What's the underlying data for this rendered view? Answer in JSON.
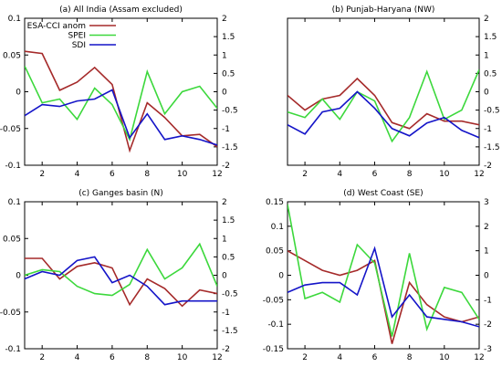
{
  "chart_data": [
    {
      "type": "line",
      "title": "(a) All India (Assam excluded)",
      "x": [
        1,
        2,
        3,
        4,
        5,
        6,
        7,
        8,
        9,
        10,
        11,
        12
      ],
      "x_ticks": [
        2,
        4,
        6,
        8,
        10,
        12
      ],
      "ylim_left": [
        -0.1,
        0.1
      ],
      "yticks_left": [
        -0.1,
        -0.05,
        0,
        0.05,
        0.1
      ],
      "yticklabels_left": [
        "-0.1",
        "-0.05",
        "0",
        "0.05",
        "0.1"
      ],
      "ylim_right": [
        -2,
        2
      ],
      "yticks_right": [
        -2,
        -1.5,
        -1,
        -0.5,
        0,
        0.5,
        1,
        1.5,
        2
      ],
      "yticklabels_right": [
        "-2",
        "-1.5",
        "-1",
        "-0.5",
        "0",
        "0.5",
        "1",
        "1.5",
        "2"
      ],
      "legend": {
        "position": "top-left",
        "entries": [
          "ESA-CCI anom",
          "SPEI",
          "SDI"
        ]
      },
      "series": [
        {
          "name": "ESA-CCI anom",
          "axis": "left",
          "color": "#a52a2a",
          "values": [
            0.055,
            0.052,
            0.002,
            0.013,
            0.033,
            0.01,
            -0.08,
            -0.015,
            -0.035,
            -0.06,
            -0.058,
            -0.075
          ]
        },
        {
          "name": "SPEI",
          "axis": "right",
          "color": "#3cd83c",
          "values": [
            0.7,
            -0.3,
            -0.2,
            -0.75,
            0.1,
            -0.35,
            -1.3,
            0.55,
            -0.6,
            0.0,
            0.15,
            -0.45
          ]
        },
        {
          "name": "SDI",
          "axis": "right",
          "color": "#1414c8",
          "values": [
            -0.65,
            -0.35,
            -0.4,
            -0.25,
            -0.2,
            0.05,
            -1.25,
            -0.6,
            -1.3,
            -1.2,
            -1.3,
            -1.45
          ]
        }
      ]
    },
    {
      "type": "line",
      "title": "(b) Punjab-Haryana (NW)",
      "x": [
        1,
        2,
        3,
        4,
        5,
        6,
        7,
        8,
        9,
        10,
        11,
        12
      ],
      "x_ticks": [
        2,
        4,
        6,
        8,
        10,
        12
      ],
      "ylim_left": [
        -0.1,
        0.1
      ],
      "ylim_right": [
        -2,
        2
      ],
      "yticks_right": [
        -2,
        -1.5,
        -1,
        -0.5,
        0,
        0.5,
        1,
        1.5,
        2
      ],
      "yticklabels_right": [
        "-2",
        "-1.5",
        "-1",
        "-0.5",
        "0",
        "0.5",
        "1",
        "1.5",
        "2"
      ],
      "series": [
        {
          "name": "ESA-CCI anom",
          "axis": "left",
          "color": "#a52a2a",
          "values": [
            -0.005,
            -0.025,
            -0.01,
            -0.005,
            0.018,
            -0.005,
            -0.042,
            -0.05,
            -0.03,
            -0.04,
            -0.04,
            -0.045
          ]
        },
        {
          "name": "SPEI",
          "axis": "right",
          "color": "#3cd83c",
          "values": [
            -0.55,
            -0.7,
            -0.2,
            -0.75,
            0.0,
            -0.25,
            -1.35,
            -0.7,
            0.55,
            -0.75,
            -0.5,
            0.6
          ]
        },
        {
          "name": "SDI",
          "axis": "right",
          "color": "#1414c8",
          "values": [
            -0.9,
            -1.15,
            -0.55,
            -0.45,
            0.0,
            -0.45,
            -1.0,
            -1.2,
            -0.85,
            -0.7,
            -1.05,
            -1.25
          ]
        }
      ]
    },
    {
      "type": "line",
      "title": "(c) Ganges basin (N)",
      "x": [
        1,
        2,
        3,
        4,
        5,
        6,
        7,
        8,
        9,
        10,
        11,
        12
      ],
      "x_ticks": [
        2,
        4,
        6,
        8,
        10,
        12
      ],
      "ylim_left": [
        -0.1,
        0.1
      ],
      "yticks_left": [
        -0.1,
        -0.05,
        0,
        0.05,
        0.1
      ],
      "yticklabels_left": [
        "-0.1",
        "-0.05",
        "0",
        "0.05",
        "0.1"
      ],
      "ylim_right": [
        -2,
        2
      ],
      "yticks_right": [
        -2,
        -1.5,
        -1,
        -0.5,
        0,
        0.5,
        1,
        1.5,
        2
      ],
      "yticklabels_right": [
        "-2",
        "-1.5",
        "-1",
        "-0.5",
        "0",
        "0.5",
        "1",
        "1.5",
        "2"
      ],
      "series": [
        {
          "name": "ESA-CCI anom",
          "axis": "left",
          "color": "#a52a2a",
          "values": [
            0.023,
            0.023,
            -0.005,
            0.012,
            0.017,
            0.01,
            -0.04,
            -0.005,
            -0.018,
            -0.042,
            -0.02,
            -0.025
          ]
        },
        {
          "name": "SPEI",
          "axis": "right",
          "color": "#3cd83c",
          "values": [
            0.0,
            0.15,
            0.1,
            -0.3,
            -0.5,
            -0.55,
            -0.25,
            0.7,
            -0.1,
            0.2,
            0.85,
            -0.3
          ]
        },
        {
          "name": "SDI",
          "axis": "right",
          "color": "#1414c8",
          "values": [
            -0.1,
            0.1,
            0.0,
            0.4,
            0.5,
            -0.2,
            0.0,
            -0.3,
            -0.8,
            -0.7,
            -0.7,
            -0.7
          ]
        }
      ]
    },
    {
      "type": "line",
      "title": "(d) West Coast (SE)",
      "x": [
        1,
        2,
        3,
        4,
        5,
        6,
        7,
        8,
        9,
        10,
        11,
        12
      ],
      "x_ticks": [
        2,
        4,
        6,
        8,
        10,
        12
      ],
      "ylim_left": [
        -0.15,
        0.15
      ],
      "yticks_left": [
        -0.15,
        -0.1,
        -0.05,
        0,
        0.05,
        0.1,
        0.15
      ],
      "yticklabels_left": [
        "-0.15",
        "-0.1",
        "-0.05",
        "0",
        "0.05",
        "0.1",
        "0.15"
      ],
      "ylim_right": [
        -3,
        3
      ],
      "yticks_right": [
        -3,
        -2,
        -1,
        0,
        1,
        2,
        3
      ],
      "yticklabels_right": [
        "-3",
        "-2",
        "-1",
        "0",
        "1",
        "2",
        "3"
      ],
      "series": [
        {
          "name": "ESA-CCI anom",
          "axis": "left",
          "color": "#a52a2a",
          "values": [
            0.05,
            0.03,
            0.01,
            0.0,
            0.01,
            0.03,
            -0.14,
            -0.015,
            -0.06,
            -0.085,
            -0.095,
            -0.085
          ]
        },
        {
          "name": "SPEI",
          "axis": "right",
          "color": "#3cd83c",
          "values": [
            2.9,
            -0.95,
            -0.7,
            -1.1,
            1.25,
            0.5,
            -2.5,
            0.9,
            -2.2,
            -0.5,
            -0.7,
            -1.8
          ]
        },
        {
          "name": "SDI",
          "axis": "right",
          "color": "#1414c8",
          "values": [
            -0.7,
            -0.4,
            -0.3,
            -0.3,
            -0.8,
            1.1,
            -1.7,
            -0.8,
            -1.7,
            -1.8,
            -1.9,
            -2.1
          ]
        }
      ]
    }
  ]
}
